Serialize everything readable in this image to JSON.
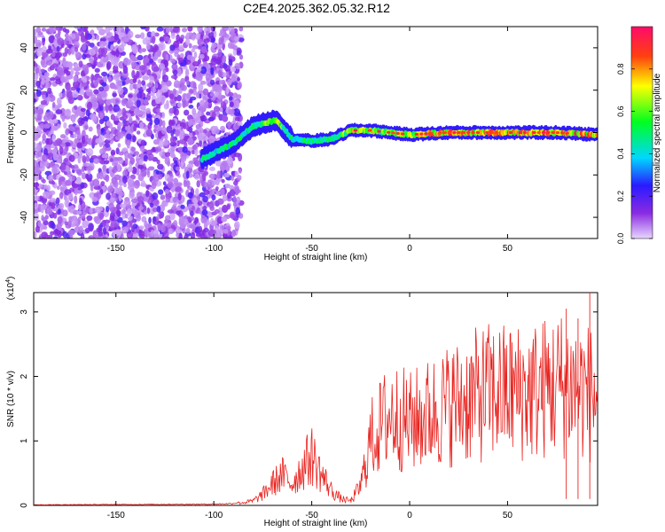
{
  "figure_title": "C2E4.2025.362.05.32.R12",
  "chart_data": [
    {
      "type": "heatmap",
      "panel": "spectrogram",
      "xlabel": "Height of straight line (km)",
      "ylabel": "Frequency (Hz)",
      "xlim": [
        -192,
        96
      ],
      "ylim": [
        -50,
        50
      ],
      "xticks": [
        -150,
        -100,
        -50,
        0,
        50
      ],
      "yticks": [
        -40,
        -20,
        0,
        20,
        40
      ],
      "colorbar": {
        "label": "Normalized spectral amplitude",
        "range": [
          0.0,
          1.0
        ],
        "ticks": [
          0.0,
          0.2,
          0.4,
          0.6,
          0.8
        ]
      },
      "description_points": {
        "noise_region_x": [
          -192,
          -90
        ],
        "ridge": [
          {
            "x": -105,
            "y": -12
          },
          {
            "x": -90,
            "y": -5
          },
          {
            "x": -80,
            "y": 3
          },
          {
            "x": -68,
            "y": 6
          },
          {
            "x": -60,
            "y": -3
          },
          {
            "x": -50,
            "y": -4
          },
          {
            "x": -40,
            "y": -3
          },
          {
            "x": -30,
            "y": 1
          },
          {
            "x": -20,
            "y": 1
          },
          {
            "x": 0,
            "y": -1
          },
          {
            "x": 20,
            "y": 0
          },
          {
            "x": 50,
            "y": 0
          },
          {
            "x": 75,
            "y": 0
          },
          {
            "x": 96,
            "y": -1
          }
        ]
      }
    },
    {
      "type": "line",
      "panel": "snr",
      "xlabel": "Height of straight line (km)",
      "ylabel": "SNR (10 * v/v)",
      "scale_label": "(x10",
      "scale_exp": "4",
      "scale_close": ")",
      "xlim": [
        -192,
        96
      ],
      "ylim": [
        0,
        3.3
      ],
      "xticks": [
        -150,
        -100,
        -50,
        0,
        50
      ],
      "yticks": [
        0,
        1,
        2,
        3
      ],
      "color": "#e8231f",
      "envelope": [
        {
          "x": -192,
          "y": 0.01
        },
        {
          "x": -100,
          "y": 0.02
        },
        {
          "x": -90,
          "y": 0.03
        },
        {
          "x": -80,
          "y": 0.1
        },
        {
          "x": -75,
          "y": 0.25
        },
        {
          "x": -70,
          "y": 0.5
        },
        {
          "x": -65,
          "y": 0.7
        },
        {
          "x": -60,
          "y": 0.5
        },
        {
          "x": -55,
          "y": 0.85
        },
        {
          "x": -50,
          "y": 1.15
        },
        {
          "x": -45,
          "y": 0.7
        },
        {
          "x": -40,
          "y": 0.35
        },
        {
          "x": -35,
          "y": 0.15
        },
        {
          "x": -30,
          "y": 0.1
        },
        {
          "x": -25,
          "y": 0.45
        },
        {
          "x": -20,
          "y": 1.5
        },
        {
          "x": -10,
          "y": 2.1
        },
        {
          "x": 0,
          "y": 1.9
        },
        {
          "x": 20,
          "y": 2.3
        },
        {
          "x": 40,
          "y": 2.6
        },
        {
          "x": 60,
          "y": 2.6
        },
        {
          "x": 80,
          "y": 2.8
        },
        {
          "x": 96,
          "y": 2.5
        }
      ]
    }
  ]
}
